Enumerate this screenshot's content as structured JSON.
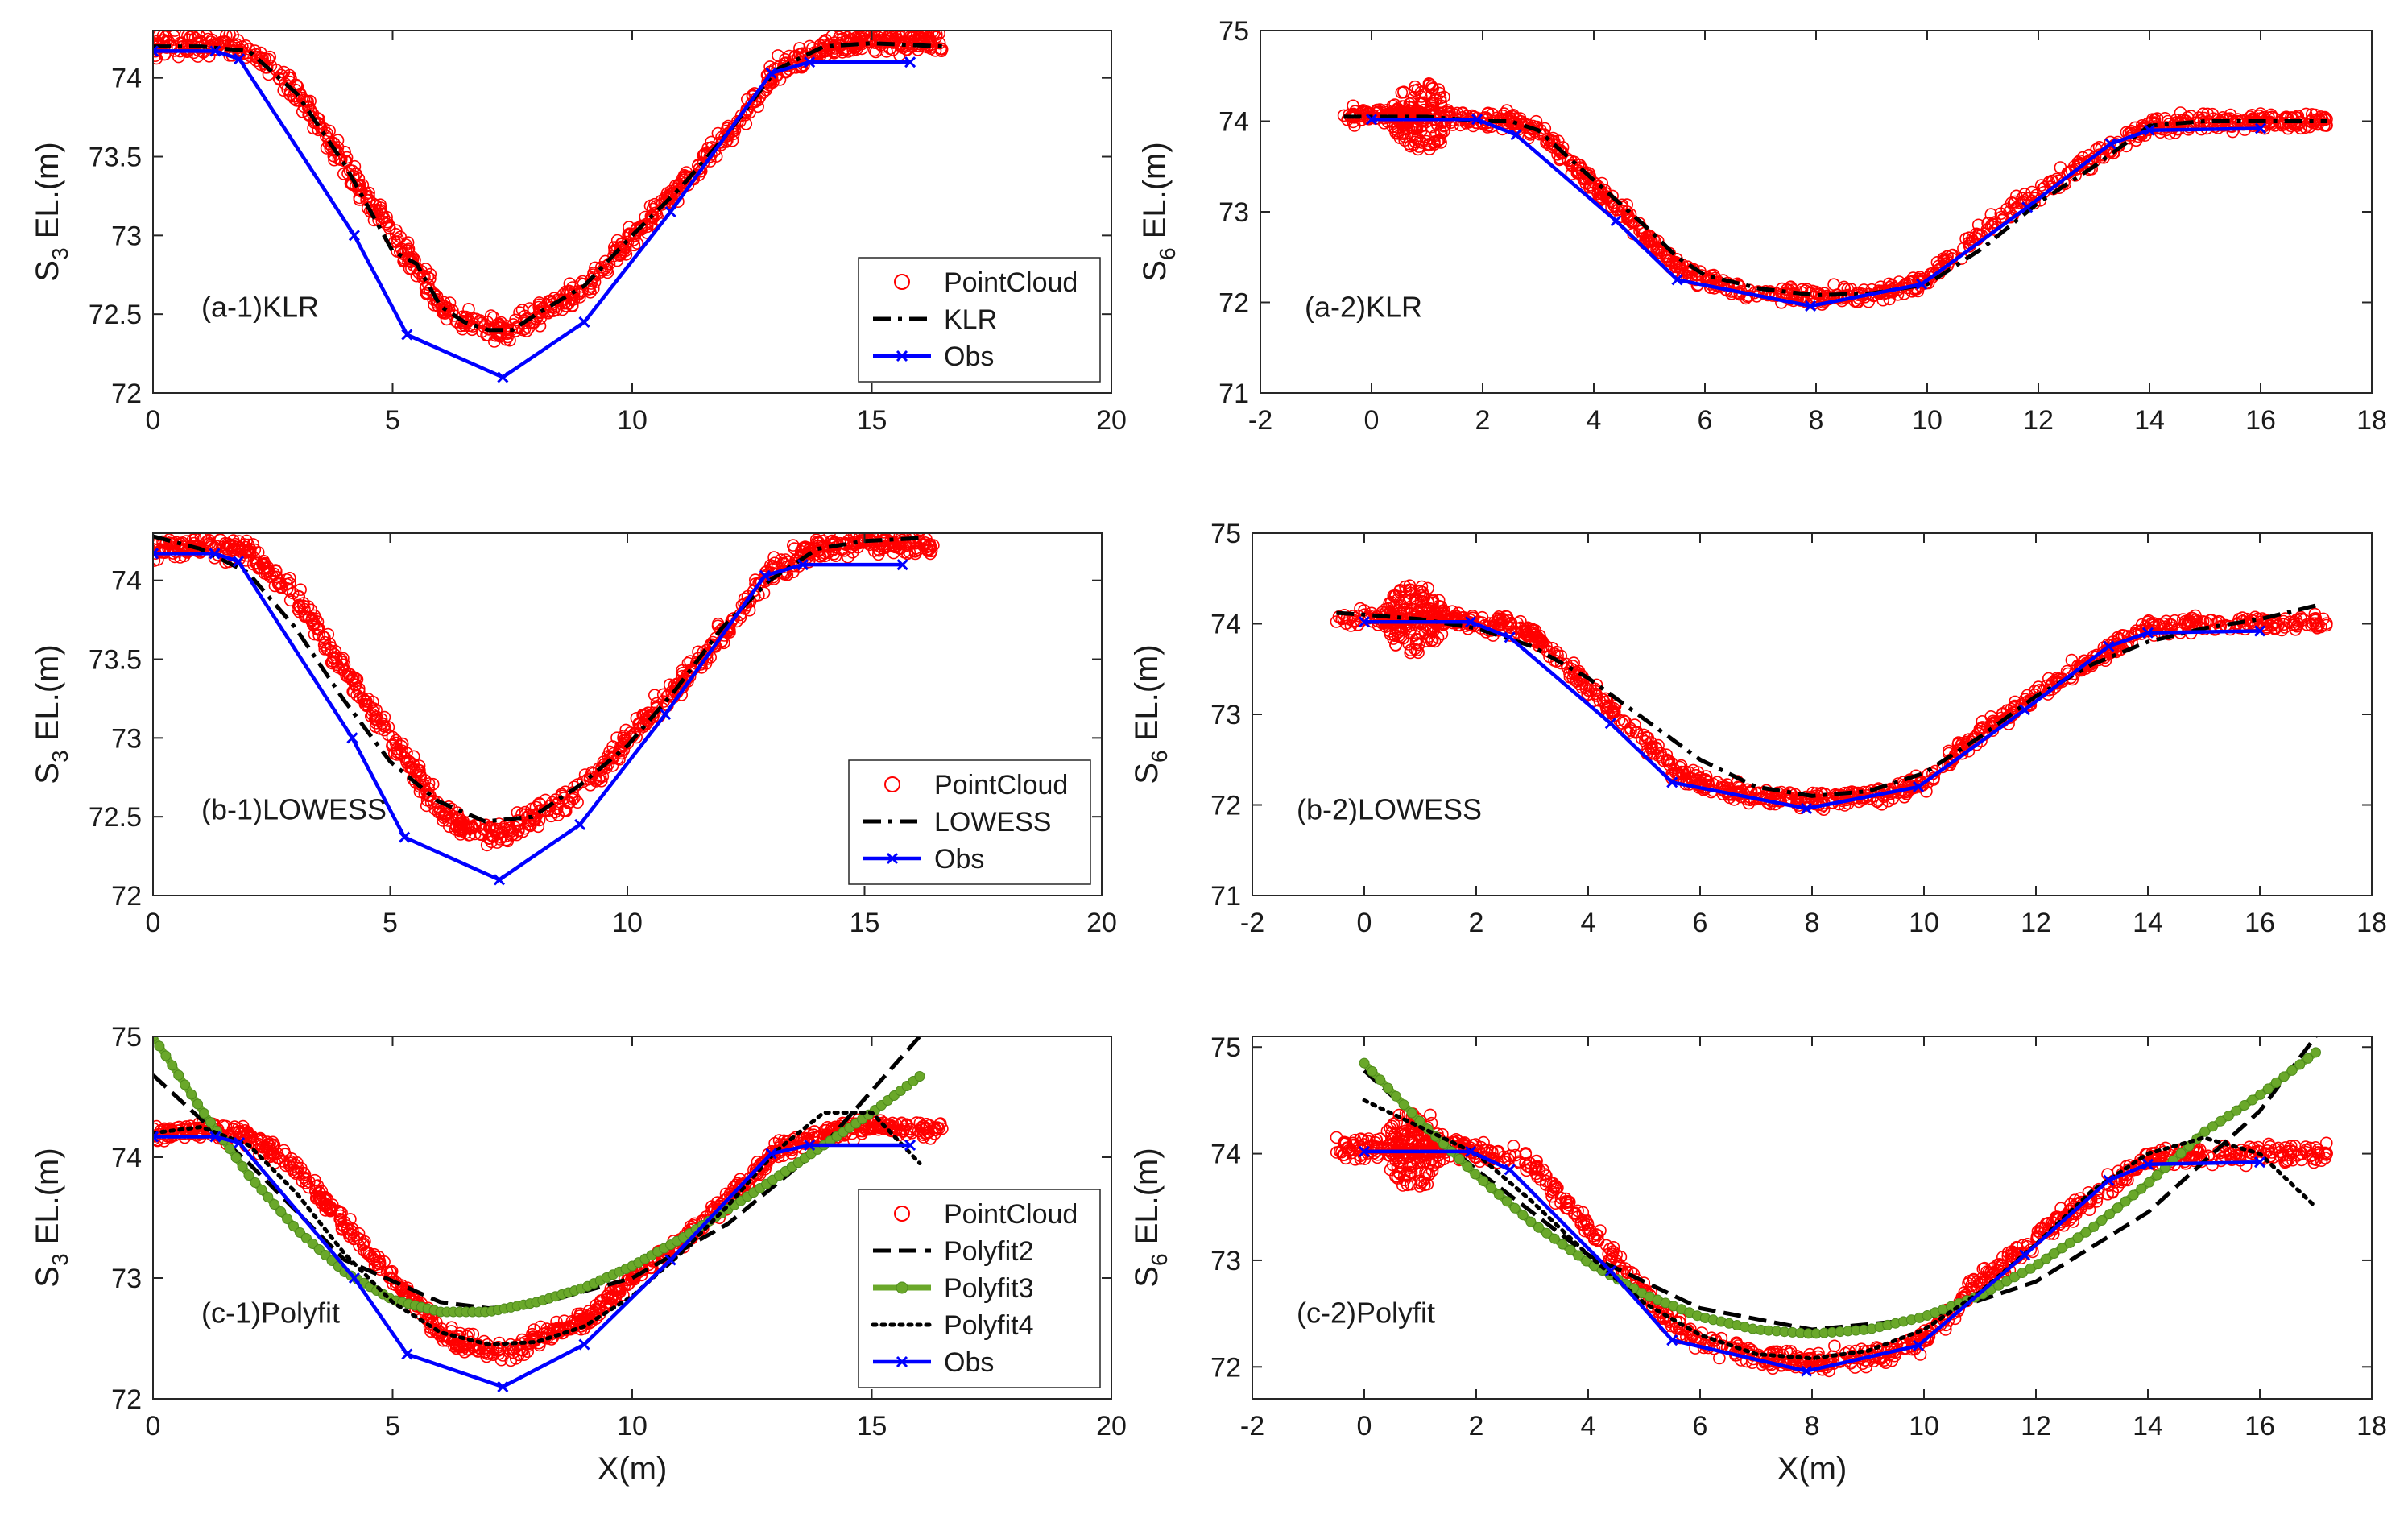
{
  "chart_data": [
    {
      "type": "scatter",
      "panel_label": "(a-1)KLR",
      "xlabel": "",
      "ylabel_base": "S",
      "ylabel_sub": "3",
      "ylabel_rest": " EL.(m)",
      "xlim": [
        0,
        20
      ],
      "ylim": [
        72,
        74.3
      ],
      "xticks": [
        0,
        5,
        10,
        15,
        20
      ],
      "yticks": [
        72,
        72.5,
        73,
        73.5,
        74
      ],
      "yticklabels": [
        "72",
        "72.5",
        "73",
        "73.5",
        "74"
      ],
      "legend": {
        "placement": "bottom-right",
        "entries": [
          "PointCloud",
          "KLR",
          "Obs"
        ]
      },
      "pointcloud": {
        "x": [
          0,
          1,
          2,
          3,
          4,
          5,
          5.5,
          6,
          6.5,
          7,
          7.5,
          8,
          9,
          10,
          11,
          12,
          13,
          14,
          15,
          16.5
        ],
        "y": [
          74.2,
          74.22,
          74.18,
          73.9,
          73.45,
          73.0,
          72.8,
          72.55,
          72.45,
          72.4,
          72.4,
          72.5,
          72.65,
          73.0,
          73.3,
          73.65,
          74.05,
          74.2,
          74.25,
          74.22
        ],
        "spread": 0.07
      },
      "series": [
        {
          "name": "KLR",
          "style": "dashdot",
          "x": [
            0,
            1,
            2,
            3,
            4,
            5,
            5.5,
            6,
            6.5,
            7,
            7.5,
            8,
            9,
            10,
            11,
            12,
            13,
            14,
            15,
            16.5
          ],
          "y": [
            74.2,
            74.2,
            74.17,
            73.9,
            73.45,
            72.9,
            72.82,
            72.55,
            72.45,
            72.4,
            72.4,
            72.5,
            72.68,
            73.0,
            73.3,
            73.65,
            74.05,
            74.2,
            74.22,
            74.2
          ]
        },
        {
          "name": "Obs",
          "style": "obs",
          "x": [
            0,
            1.3,
            1.8,
            4.2,
            5.3,
            7.3,
            9.0,
            10.8,
            12.9,
            13.7,
            15.8
          ],
          "y": [
            74.17,
            74.17,
            74.12,
            73.0,
            72.37,
            72.1,
            72.45,
            73.15,
            74.03,
            74.1,
            74.1
          ]
        }
      ]
    },
    {
      "type": "scatter",
      "panel_label": "(a-2)KLR",
      "xlabel": "",
      "ylabel_base": "S",
      "ylabel_sub": "6",
      "ylabel_rest": " EL.(m)",
      "xlim": [
        -2,
        18
      ],
      "ylim": [
        71,
        75
      ],
      "xticks": [
        -2,
        0,
        2,
        4,
        6,
        8,
        10,
        12,
        14,
        16,
        18
      ],
      "yticks": [
        71,
        72,
        73,
        74,
        75
      ],
      "yticklabels": [
        "71",
        "72",
        "73",
        "74",
        "75"
      ],
      "legend": null,
      "pointcloud": {
        "x": [
          -0.5,
          0,
          0.5,
          1,
          1.5,
          2,
          2.5,
          3,
          4,
          5,
          5.5,
          6,
          7,
          8,
          9,
          9.5,
          10,
          11,
          12,
          13,
          14,
          15,
          16,
          17.2
        ],
        "y": [
          74.07,
          74.05,
          74.05,
          74.05,
          74.05,
          74.0,
          74.0,
          73.9,
          73.3,
          72.7,
          72.4,
          72.25,
          72.1,
          72.05,
          72.1,
          72.15,
          72.25,
          72.8,
          73.2,
          73.6,
          73.95,
          74.0,
          74.0,
          74.0
        ],
        "spread": 0.09
      },
      "cluster": {
        "cx": 0.9,
        "cy": 74.05,
        "rx": 0.55,
        "ry": 0.38
      },
      "series": [
        {
          "name": "KLR",
          "style": "dashdot",
          "x": [
            -0.5,
            0,
            1,
            2,
            2.5,
            3,
            4,
            5,
            5.5,
            6,
            7,
            8,
            9,
            10,
            11,
            12,
            13,
            14,
            15,
            16,
            17.2
          ],
          "y": [
            74.05,
            74.05,
            74.05,
            74.0,
            74.0,
            73.9,
            73.35,
            72.8,
            72.5,
            72.3,
            72.15,
            72.08,
            72.1,
            72.2,
            72.6,
            73.1,
            73.5,
            73.95,
            74.0,
            74.0,
            74.0
          ]
        },
        {
          "name": "Obs",
          "style": "obs",
          "x": [
            0,
            1.9,
            2.6,
            4.4,
            5.5,
            7.9,
            9.9,
            11.8,
            13.3,
            14.0,
            16.0
          ],
          "y": [
            74.02,
            74.02,
            73.85,
            72.9,
            72.25,
            71.96,
            72.2,
            73.05,
            73.75,
            73.9,
            73.92
          ]
        }
      ]
    },
    {
      "type": "scatter",
      "panel_label": "(b-1)LOWESS",
      "xlabel": "",
      "ylabel_base": "S",
      "ylabel_sub": "3",
      "ylabel_rest": " EL.(m)",
      "xlim": [
        0,
        20
      ],
      "ylim": [
        72,
        74.3
      ],
      "xticks": [
        0,
        5,
        10,
        15,
        20
      ],
      "yticks": [
        72,
        72.5,
        73,
        73.5,
        74
      ],
      "yticklabels": [
        "72",
        "72.5",
        "73",
        "73.5",
        "74"
      ],
      "legend": {
        "placement": "bottom-right",
        "entries": [
          "PointCloud",
          "LOWESS",
          "Obs"
        ]
      },
      "pointcloud": {
        "x": [
          0,
          1,
          2,
          3,
          4,
          5,
          5.5,
          6,
          6.5,
          7,
          7.5,
          8,
          9,
          10,
          11,
          12,
          13,
          14,
          15,
          16.5
        ],
        "y": [
          74.2,
          74.22,
          74.18,
          73.9,
          73.45,
          73.0,
          72.8,
          72.55,
          72.45,
          72.4,
          72.4,
          72.5,
          72.65,
          73.0,
          73.3,
          73.65,
          74.05,
          74.2,
          74.25,
          74.22
        ],
        "spread": 0.07
      },
      "series": [
        {
          "name": "LOWESS",
          "style": "dashdot",
          "x": [
            0,
            1,
            2,
            3,
            4,
            5,
            6,
            7,
            8,
            9,
            10,
            11,
            12,
            13,
            14,
            15,
            16.2
          ],
          "y": [
            74.28,
            74.2,
            74.05,
            73.7,
            73.25,
            72.85,
            72.6,
            72.47,
            72.5,
            72.7,
            72.95,
            73.3,
            73.7,
            74.0,
            74.2,
            74.25,
            74.27
          ]
        },
        {
          "name": "Obs",
          "style": "obs",
          "x": [
            0,
            1.3,
            1.8,
            4.2,
            5.3,
            7.3,
            9.0,
            10.8,
            12.9,
            13.7,
            15.8
          ],
          "y": [
            74.17,
            74.17,
            74.12,
            73.0,
            72.37,
            72.1,
            72.45,
            73.15,
            74.03,
            74.1,
            74.1
          ]
        }
      ]
    },
    {
      "type": "scatter",
      "panel_label": "(b-2)LOWESS",
      "xlabel": "",
      "ylabel_base": "S",
      "ylabel_sub": "6",
      "ylabel_rest": " EL.(m)",
      "xlim": [
        -2,
        18
      ],
      "ylim": [
        71,
        75
      ],
      "xticks": [
        -2,
        0,
        2,
        4,
        6,
        8,
        10,
        12,
        14,
        16,
        18
      ],
      "yticks": [
        71,
        72,
        73,
        74,
        75
      ],
      "yticklabels": [
        "71",
        "72",
        "73",
        "74",
        "75"
      ],
      "legend": null,
      "pointcloud": {
        "x": [
          -0.5,
          0,
          0.5,
          1,
          1.5,
          2,
          2.5,
          3,
          4,
          5,
          5.5,
          6,
          7,
          8,
          9,
          9.5,
          10,
          11,
          12,
          13,
          14,
          15,
          16,
          17.2
        ],
        "y": [
          74.07,
          74.05,
          74.05,
          74.05,
          74.05,
          74.0,
          74.0,
          73.9,
          73.3,
          72.7,
          72.4,
          72.25,
          72.1,
          72.05,
          72.1,
          72.15,
          72.25,
          72.8,
          73.2,
          73.6,
          73.95,
          74.0,
          74.0,
          74.0
        ],
        "spread": 0.09
      },
      "cluster": {
        "cx": 0.9,
        "cy": 74.05,
        "rx": 0.55,
        "ry": 0.38
      },
      "series": [
        {
          "name": "LOWESS",
          "style": "dashdot",
          "x": [
            -0.5,
            0,
            1,
            2,
            3,
            4,
            5,
            6,
            7,
            8,
            9,
            10,
            11,
            12,
            13,
            14,
            15,
            16,
            17
          ],
          "y": [
            74.12,
            74.1,
            74.05,
            73.95,
            73.75,
            73.4,
            72.95,
            72.5,
            72.2,
            72.1,
            72.15,
            72.35,
            72.75,
            73.2,
            73.55,
            73.8,
            73.95,
            74.05,
            74.2
          ]
        },
        {
          "name": "Obs",
          "style": "obs",
          "x": [
            0,
            1.9,
            2.6,
            4.4,
            5.5,
            7.9,
            9.9,
            11.8,
            13.3,
            14.0,
            16.0
          ],
          "y": [
            74.02,
            74.02,
            73.85,
            72.9,
            72.25,
            71.96,
            72.2,
            73.05,
            73.75,
            73.9,
            73.92
          ]
        }
      ]
    },
    {
      "type": "scatter",
      "panel_label": "(c-1)Polyfit",
      "xlabel": "X(m)",
      "ylabel_base": "S",
      "ylabel_sub": "3",
      "ylabel_rest": " EL.(m)",
      "xlim": [
        0,
        20
      ],
      "ylim": [
        72,
        75
      ],
      "xticks": [
        0,
        5,
        10,
        15,
        20
      ],
      "yticks": [
        72,
        73,
        74,
        75
      ],
      "yticklabels": [
        "72",
        "73",
        "74",
        "75"
      ],
      "legend": {
        "placement": "bottom-right",
        "entries": [
          "PointCloud",
          "Polyfit2",
          "Polyfit3",
          "Polyfit4",
          "Obs"
        ]
      },
      "pointcloud": {
        "x": [
          0,
          1,
          2,
          3,
          4,
          5,
          5.5,
          6,
          6.5,
          7,
          7.5,
          8,
          9,
          10,
          11,
          12,
          13,
          14,
          15,
          16.5
        ],
        "y": [
          74.2,
          74.22,
          74.18,
          73.9,
          73.45,
          73.0,
          72.8,
          72.55,
          72.45,
          72.4,
          72.4,
          72.5,
          72.65,
          73.0,
          73.3,
          73.65,
          74.05,
          74.2,
          74.25,
          74.22
        ],
        "spread": 0.07
      },
      "series": [
        {
          "name": "Polyfit2",
          "style": "dashed",
          "x": [
            0,
            2,
            4,
            6,
            7,
            8,
            10,
            12,
            14,
            16
          ],
          "y": [
            74.68,
            73.95,
            73.15,
            72.8,
            72.75,
            72.78,
            73.0,
            73.45,
            74.1,
            75.0
          ]
        },
        {
          "name": "Polyfit3",
          "style": "green",
          "x": [
            0,
            1,
            2,
            3,
            4,
            5,
            6,
            7,
            8,
            9,
            10,
            11,
            12,
            13,
            14,
            15,
            16
          ],
          "y": [
            75.0,
            74.4,
            73.85,
            73.4,
            73.05,
            72.82,
            72.72,
            72.72,
            72.8,
            72.92,
            73.1,
            73.32,
            73.57,
            73.83,
            74.1,
            74.37,
            74.67
          ]
        },
        {
          "name": "Polyfit4",
          "style": "dotted",
          "x": [
            0,
            1,
            2,
            3,
            4,
            5,
            6,
            7,
            8,
            9,
            10,
            11,
            12,
            13,
            14,
            15,
            16
          ],
          "y": [
            74.2,
            74.25,
            74.1,
            73.7,
            73.2,
            72.8,
            72.55,
            72.45,
            72.47,
            72.6,
            72.85,
            73.2,
            73.6,
            74.05,
            74.37,
            74.37,
            73.95
          ]
        },
        {
          "name": "Obs",
          "style": "obs",
          "x": [
            0,
            1.3,
            1.8,
            4.2,
            5.3,
            7.3,
            9.0,
            10.8,
            12.9,
            13.7,
            15.8
          ],
          "y": [
            74.17,
            74.17,
            74.12,
            73.0,
            72.37,
            72.1,
            72.45,
            73.15,
            74.03,
            74.1,
            74.1
          ]
        }
      ]
    },
    {
      "type": "scatter",
      "panel_label": "(c-2)Polyfit",
      "xlabel": "X(m)",
      "ylabel_base": "S",
      "ylabel_sub": "6",
      "ylabel_rest": " EL.(m)",
      "xlim": [
        -2,
        18
      ],
      "ylim": [
        71.7,
        75.1
      ],
      "xticks": [
        -2,
        0,
        2,
        4,
        6,
        8,
        10,
        12,
        14,
        16,
        18
      ],
      "yticks": [
        72,
        73,
        74,
        75
      ],
      "yticklabels": [
        "72",
        "73",
        "74",
        "75"
      ],
      "legend": null,
      "pointcloud": {
        "x": [
          -0.5,
          0,
          0.5,
          1,
          1.5,
          2,
          2.5,
          3,
          4,
          5,
          5.5,
          6,
          7,
          8,
          9,
          9.5,
          10,
          11,
          12,
          13,
          14,
          15,
          16,
          17.2
        ],
        "y": [
          74.07,
          74.05,
          74.05,
          74.05,
          74.05,
          74.0,
          74.0,
          73.9,
          73.3,
          72.7,
          72.4,
          72.25,
          72.1,
          72.05,
          72.1,
          72.15,
          72.25,
          72.8,
          73.2,
          73.6,
          73.95,
          74.0,
          74.0,
          74.0
        ],
        "spread": 0.09
      },
      "cluster": {
        "cx": 0.9,
        "cy": 74.05,
        "rx": 0.55,
        "ry": 0.38
      },
      "series": [
        {
          "name": "Polyfit2",
          "style": "dashed",
          "x": [
            0,
            1,
            2,
            4,
            6,
            8,
            10,
            12,
            14,
            16,
            17
          ],
          "y": [
            74.78,
            74.3,
            73.85,
            73.05,
            72.55,
            72.35,
            72.45,
            72.8,
            73.45,
            74.4,
            75.1
          ]
        },
        {
          "name": "Polyfit3",
          "style": "green",
          "x": [
            0,
            1,
            2,
            3,
            4,
            5,
            6,
            7,
            8,
            9,
            10,
            11,
            12,
            13,
            14,
            15,
            16,
            17
          ],
          "y": [
            74.85,
            74.3,
            73.8,
            73.35,
            72.98,
            72.68,
            72.47,
            72.35,
            72.31,
            72.35,
            72.47,
            72.67,
            72.95,
            73.3,
            73.72,
            74.2,
            74.55,
            74.95
          ]
        },
        {
          "name": "Polyfit4",
          "style": "dotted",
          "x": [
            0,
            1,
            2,
            3,
            4,
            5,
            6,
            7,
            8,
            9,
            10,
            11,
            12,
            13,
            14,
            15,
            16,
            17
          ],
          "y": [
            74.5,
            74.25,
            74.0,
            73.55,
            73.05,
            72.6,
            72.3,
            72.12,
            72.08,
            72.15,
            72.35,
            72.7,
            73.15,
            73.65,
            74.0,
            74.15,
            74.0,
            73.5
          ]
        },
        {
          "name": "Obs",
          "style": "obs",
          "x": [
            0,
            1.9,
            2.6,
            4.4,
            5.5,
            7.9,
            9.9,
            11.8,
            13.3,
            14.0,
            16.0
          ],
          "y": [
            74.02,
            74.02,
            73.85,
            72.9,
            72.25,
            71.96,
            72.2,
            73.05,
            73.75,
            73.9,
            73.92
          ]
        }
      ]
    }
  ],
  "colors": {
    "pointcloud": "#ff0000",
    "fit": "#000000",
    "polyfit3": "#6aa82a",
    "obs": "#0000ff",
    "axis": "#262626"
  }
}
